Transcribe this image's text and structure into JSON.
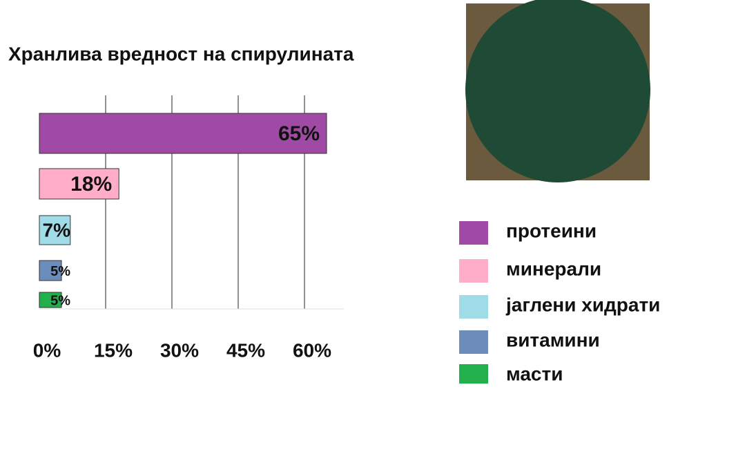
{
  "chart_data": {
    "type": "bar",
    "orientation": "horizontal",
    "title": "Хранлива вредност на спирулината",
    "categories": [
      "протеини",
      "минерали",
      "јаглени хидрати",
      "витамини",
      "масти"
    ],
    "values": [
      65,
      18,
      7,
      5,
      5
    ],
    "value_labels": [
      "65%",
      "18%",
      "7%",
      "5%",
      "5%"
    ],
    "colors": [
      "#a04aa6",
      "#ffadc9",
      "#a0dce8",
      "#6c8cbc",
      "#22b04c"
    ],
    "xlim": [
      0,
      70
    ],
    "xticks": [
      {
        "value": 0,
        "label": "0%"
      },
      {
        "value": 15,
        "label": "15%"
      },
      {
        "value": 30,
        "label": "30%"
      },
      {
        "value": 45,
        "label": "45%"
      },
      {
        "value": 60,
        "label": "60%"
      }
    ],
    "grid": true,
    "legend": "right"
  }
}
